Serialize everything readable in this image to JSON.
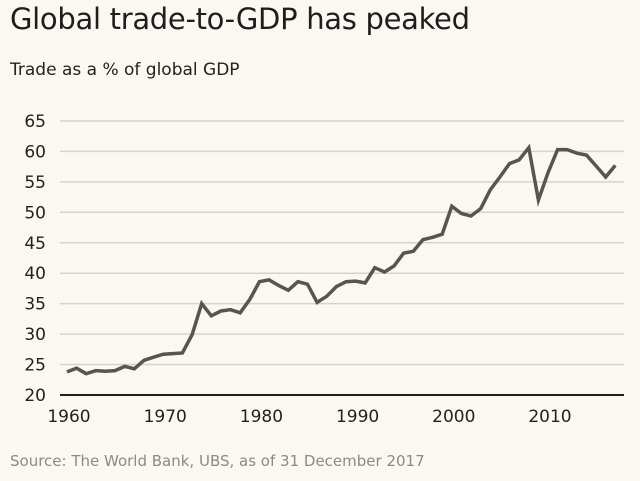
{
  "chart_data": {
    "type": "line",
    "title": "Global trade-to-GDP has peaked",
    "subtitle": "Trade as a % of global GDP",
    "source": "Source: The World Bank, UBS, as of 31 December 2017",
    "xlabel": "",
    "ylabel": "",
    "xlim": [
      1960,
      2017
    ],
    "ylim": [
      20,
      65
    ],
    "xticks": [
      1960,
      1970,
      1980,
      1990,
      2000,
      2010
    ],
    "yticks": [
      20,
      25,
      30,
      35,
      40,
      45,
      50,
      55,
      60,
      65
    ],
    "grid": "horizontal",
    "line_color": "#5a544e",
    "x": [
      1960,
      1961,
      1962,
      1963,
      1964,
      1965,
      1966,
      1967,
      1968,
      1969,
      1970,
      1971,
      1972,
      1973,
      1974,
      1975,
      1976,
      1977,
      1978,
      1979,
      1980,
      1981,
      1982,
      1983,
      1984,
      1985,
      1986,
      1987,
      1988,
      1989,
      1990,
      1991,
      1992,
      1993,
      1994,
      1995,
      1996,
      1997,
      1998,
      1999,
      2000,
      2001,
      2002,
      2003,
      2004,
      2005,
      2006,
      2007,
      2008,
      2009,
      2010,
      2011,
      2012,
      2013,
      2014,
      2015,
      2016,
      2017
    ],
    "values": [
      23.8,
      24.4,
      23.5,
      24.0,
      23.9,
      24.0,
      24.7,
      24.3,
      25.7,
      26.2,
      26.7,
      26.8,
      26.9,
      29.9,
      35.0,
      33.0,
      33.8,
      34.0,
      33.5,
      35.7,
      38.6,
      38.9,
      38.0,
      37.2,
      38.6,
      38.2,
      35.2,
      36.2,
      37.8,
      38.6,
      38.7,
      38.4,
      40.9,
      40.2,
      41.2,
      43.3,
      43.6,
      45.5,
      45.9,
      46.4,
      51.0,
      49.8,
      49.4,
      50.6,
      53.7,
      55.8,
      58.0,
      58.6,
      60.6,
      52.0,
      56.5,
      60.3,
      60.3,
      59.7,
      59.4,
      57.6,
      55.8,
      57.7
    ]
  }
}
